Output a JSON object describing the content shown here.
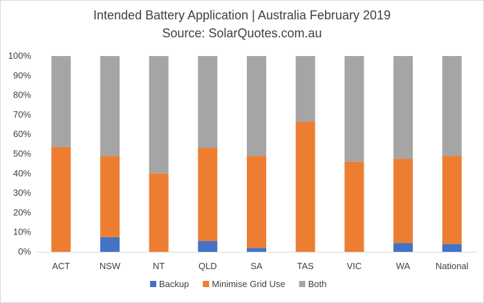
{
  "chart_data": {
    "type": "bar",
    "stacked": true,
    "title": "Intended Battery Application | Australia February 2019",
    "subtitle": "Source: SolarQuotes.com.au",
    "xlabel": "",
    "ylabel": "",
    "ylim": [
      0,
      100
    ],
    "y_ticks": [
      "0%",
      "10%",
      "20%",
      "30%",
      "40%",
      "50%",
      "60%",
      "70%",
      "80%",
      "90%",
      "100%"
    ],
    "grid": false,
    "legend_position": "bottom",
    "categories": [
      "ACT",
      "NSW",
      "NT",
      "QLD",
      "SA",
      "TAS",
      "VIC",
      "WA",
      "National"
    ],
    "series": [
      {
        "name": "Backup",
        "color": "#4472c4",
        "values": [
          0,
          7.5,
          0,
          5.5,
          2,
          0,
          0,
          4.5,
          4
        ]
      },
      {
        "name": "Minimise Grid Use",
        "color": "#ed7d31",
        "values": [
          53.5,
          41.5,
          40,
          47.5,
          47,
          66.5,
          46,
          43,
          45
        ]
      },
      {
        "name": "Both",
        "color": "#a5a5a5",
        "values": [
          46.5,
          51,
          60,
          47,
          51,
          33.5,
          54,
          52.5,
          51
        ]
      }
    ]
  }
}
